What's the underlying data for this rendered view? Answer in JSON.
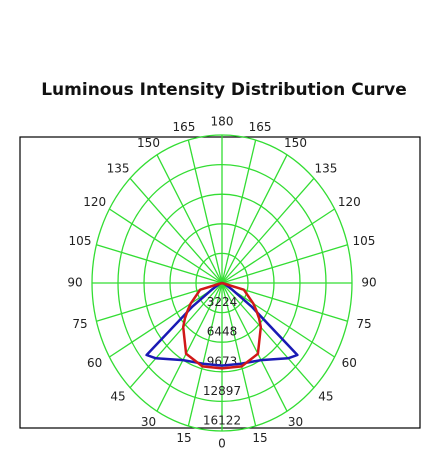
{
  "chart_data": {
    "type": "polar-line",
    "title": "Luminous Intensity Distribution Curve",
    "x": [
      0,
      15,
      30,
      45,
      50,
      55,
      60,
      75,
      90
    ],
    "series": [
      {
        "color": "#1a1ab4",
        "values": [
          9000,
          9100,
          9700,
          11600,
          12200,
          4500,
          1500,
          300,
          0
        ]
      },
      {
        "color": "#d01818",
        "values": [
          9300,
          9400,
          8900,
          6800,
          6000,
          5200,
          4500,
          2800,
          0
        ]
      }
    ],
    "rlim": [
      0,
      16122
    ],
    "rticks": [
      3224,
      6448,
      9673,
      12897,
      16122
    ],
    "angle_ticks": [
      0,
      15,
      30,
      45,
      60,
      75,
      90,
      105,
      120,
      135,
      150,
      165,
      180
    ],
    "grid_color": "#33dd33",
    "grid": true
  }
}
